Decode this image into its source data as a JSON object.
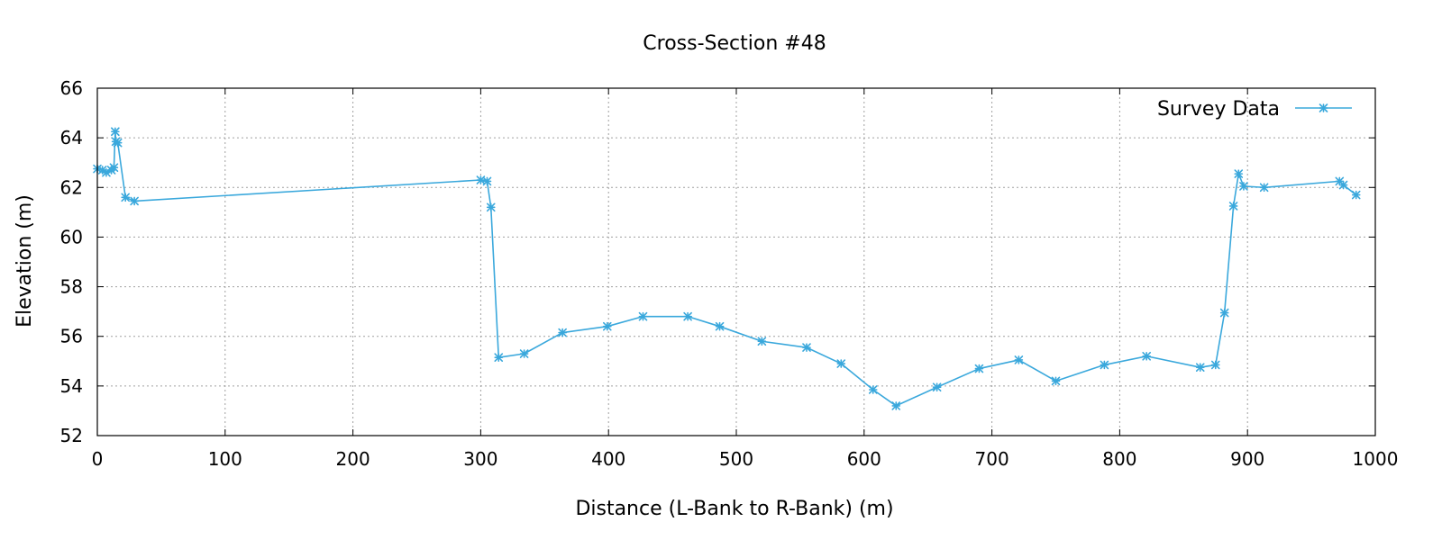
{
  "chart_data": {
    "type": "line",
    "title": "Cross-Section #48",
    "xlabel": "Distance (L-Bank to R-Bank) (m)",
    "ylabel": "Elevation (m)",
    "xlim": [
      0,
      1000
    ],
    "ylim": [
      52,
      66
    ],
    "xticks": [
      0,
      100,
      200,
      300,
      400,
      500,
      600,
      700,
      800,
      900,
      1000
    ],
    "yticks": [
      52,
      54,
      56,
      58,
      60,
      62,
      64,
      66
    ],
    "grid": true,
    "legend": "top-right",
    "series": [
      {
        "name": "Survey Data",
        "color": "#3aa8dc",
        "marker": "asterisk",
        "points": [
          [
            0,
            62.75
          ],
          [
            4,
            62.7
          ],
          [
            7,
            62.6
          ],
          [
            11,
            62.7
          ],
          [
            13,
            62.8
          ],
          [
            14,
            64.25
          ],
          [
            14.5,
            63.85
          ],
          [
            16,
            63.8
          ],
          [
            22,
            61.6
          ],
          [
            29,
            61.45
          ],
          [
            300,
            62.3
          ],
          [
            305,
            62.25
          ],
          [
            308,
            61.2
          ],
          [
            314,
            55.15
          ],
          [
            334,
            55.3
          ],
          [
            364,
            56.15
          ],
          [
            399,
            56.4
          ],
          [
            427,
            56.8
          ],
          [
            462,
            56.8
          ],
          [
            487,
            56.4
          ],
          [
            520,
            55.8
          ],
          [
            555,
            55.55
          ],
          [
            582,
            54.9
          ],
          [
            607,
            53.85
          ],
          [
            625,
            53.2
          ],
          [
            657,
            53.95
          ],
          [
            690,
            54.7
          ],
          [
            721,
            55.05
          ],
          [
            750,
            54.2
          ],
          [
            788,
            54.85
          ],
          [
            821,
            55.2
          ],
          [
            863,
            54.75
          ],
          [
            875,
            54.85
          ],
          [
            882,
            56.95
          ],
          [
            889,
            61.25
          ],
          [
            893,
            62.55
          ],
          [
            897,
            62.05
          ],
          [
            913,
            62.0
          ],
          [
            972,
            62.25
          ],
          [
            975,
            62.1
          ],
          [
            985,
            61.7
          ]
        ]
      }
    ]
  }
}
